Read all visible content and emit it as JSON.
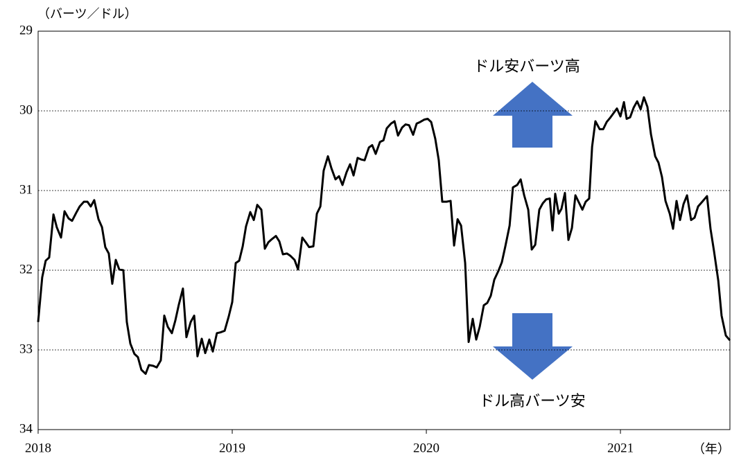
{
  "chart_data": {
    "type": "line",
    "y_label": "（バーツ／ドル）",
    "x_label": "（年）",
    "annotations": [
      "ドル安バーツ高",
      "ドル高バーツ安"
    ],
    "color": "#000000",
    "arrow_color": "#4472c4",
    "y_inverted": true,
    "grid": true,
    "xlim": [
      2018,
      2021.564
    ],
    "xticks": [
      2018,
      2019,
      2020,
      2021
    ],
    "ylim": [
      29,
      34
    ],
    "yticks": [
      29,
      30,
      31,
      32,
      33,
      34
    ],
    "x": [
      2018.0,
      2018.021,
      2018.039,
      2018.057,
      2018.079,
      2018.096,
      2018.118,
      2018.136,
      2018.157,
      2018.175,
      2018.196,
      2018.214,
      2018.236,
      2018.254,
      2018.271,
      2018.289,
      2018.311,
      2018.329,
      2018.346,
      2018.364,
      2018.382,
      2018.4,
      2018.418,
      2018.439,
      2018.457,
      2018.475,
      2018.496,
      2018.514,
      2018.532,
      2018.554,
      2018.571,
      2018.593,
      2018.611,
      2018.632,
      2018.65,
      2018.668,
      2018.689,
      2018.707,
      2018.725,
      2018.746,
      2018.764,
      2018.786,
      2018.804,
      2018.821,
      2018.843,
      2018.861,
      2018.882,
      2018.9,
      2018.921,
      2018.939,
      2018.961,
      2018.982,
      2019.0,
      2019.018,
      2019.036,
      2019.054,
      2019.071,
      2019.093,
      2019.111,
      2019.129,
      2019.15,
      2019.168,
      2019.186,
      2019.204,
      2019.225,
      2019.243,
      2019.261,
      2019.282,
      2019.3,
      2019.321,
      2019.339,
      2019.361,
      2019.379,
      2019.396,
      2019.418,
      2019.436,
      2019.454,
      2019.471,
      2019.493,
      2019.511,
      2019.532,
      2019.55,
      2019.568,
      2019.589,
      2019.607,
      2019.625,
      2019.646,
      2019.664,
      2019.682,
      2019.704,
      2019.721,
      2019.739,
      2019.761,
      2019.779,
      2019.796,
      2019.818,
      2019.836,
      2019.854,
      2019.875,
      2019.893,
      2019.911,
      2019.932,
      2019.95,
      2019.968,
      2019.989,
      2020.007,
      2020.025,
      2020.046,
      2020.064,
      2020.082,
      2020.104,
      2020.125,
      2020.143,
      2020.161,
      2020.179,
      2020.2,
      2020.218,
      2020.239,
      2020.257,
      2020.275,
      2020.296,
      2020.314,
      2020.332,
      2020.35,
      2020.371,
      2020.389,
      2020.407,
      2020.429,
      2020.446,
      2020.468,
      2020.486,
      2020.504,
      2020.525,
      2020.543,
      2020.561,
      2020.582,
      2020.6,
      2020.618,
      2020.636,
      2020.65,
      2020.664,
      2020.682,
      2020.696,
      2020.714,
      2020.732,
      2020.75,
      2020.768,
      2020.786,
      2020.804,
      2020.821,
      2020.839,
      2020.854,
      2020.871,
      2020.893,
      2020.911,
      2020.929,
      2020.946,
      2020.964,
      2020.982,
      2021.0,
      2021.018,
      2021.032,
      2021.05,
      2021.068,
      2021.086,
      2021.104,
      2021.121,
      2021.139,
      2021.157,
      2021.179,
      2021.196,
      2021.214,
      2021.232,
      2021.254,
      2021.271,
      2021.289,
      2021.307,
      2021.325,
      2021.343,
      2021.364,
      2021.382,
      2021.4,
      2021.418,
      2021.446,
      2021.464,
      2021.482,
      2021.504,
      2021.521,
      2021.543,
      2021.564
    ],
    "values": [
      32.65,
      32.09,
      31.88,
      31.84,
      31.3,
      31.46,
      31.59,
      31.26,
      31.35,
      31.38,
      31.28,
      31.2,
      31.14,
      31.14,
      31.2,
      31.12,
      31.36,
      31.46,
      31.71,
      31.79,
      32.17,
      31.87,
      31.99,
      32.0,
      32.65,
      32.92,
      33.05,
      33.09,
      33.25,
      33.3,
      33.19,
      33.2,
      33.22,
      33.13,
      32.57,
      32.71,
      32.79,
      32.63,
      32.43,
      32.23,
      32.84,
      32.65,
      32.57,
      33.08,
      32.86,
      33.04,
      32.87,
      33.02,
      32.79,
      32.78,
      32.76,
      32.58,
      32.4,
      31.91,
      31.88,
      31.7,
      31.45,
      31.27,
      31.37,
      31.18,
      31.24,
      31.73,
      31.65,
      31.61,
      31.57,
      31.64,
      31.8,
      31.79,
      31.82,
      31.87,
      31.99,
      31.59,
      31.65,
      31.71,
      31.7,
      31.29,
      31.2,
      30.75,
      30.57,
      30.72,
      30.86,
      30.82,
      30.93,
      30.77,
      30.67,
      30.81,
      30.59,
      30.61,
      30.62,
      30.46,
      30.43,
      30.54,
      30.39,
      30.37,
      30.22,
      30.16,
      30.13,
      30.31,
      30.21,
      30.17,
      30.18,
      30.3,
      30.16,
      30.14,
      30.11,
      30.1,
      30.14,
      30.35,
      30.62,
      31.14,
      31.14,
      31.13,
      31.69,
      31.36,
      31.44,
      31.91,
      32.9,
      32.61,
      32.87,
      32.71,
      32.44,
      32.41,
      32.32,
      32.12,
      32.01,
      31.9,
      31.7,
      31.44,
      30.96,
      30.93,
      30.86,
      31.06,
      31.24,
      31.74,
      31.68,
      31.24,
      31.16,
      31.11,
      31.1,
      31.5,
      31.04,
      31.29,
      31.23,
      31.03,
      31.62,
      31.47,
      31.06,
      31.15,
      31.24,
      31.14,
      31.1,
      30.45,
      30.13,
      30.23,
      30.23,
      30.14,
      30.09,
      30.03,
      29.97,
      30.07,
      29.89,
      30.1,
      30.08,
      29.96,
      29.88,
      29.98,
      29.83,
      29.95,
      30.29,
      30.57,
      30.65,
      30.83,
      31.13,
      31.29,
      31.48,
      31.13,
      31.37,
      31.17,
      31.06,
      31.37,
      31.34,
      31.2,
      31.15,
      31.07,
      31.48,
      31.76,
      32.13,
      32.57,
      32.82,
      32.88
    ]
  }
}
